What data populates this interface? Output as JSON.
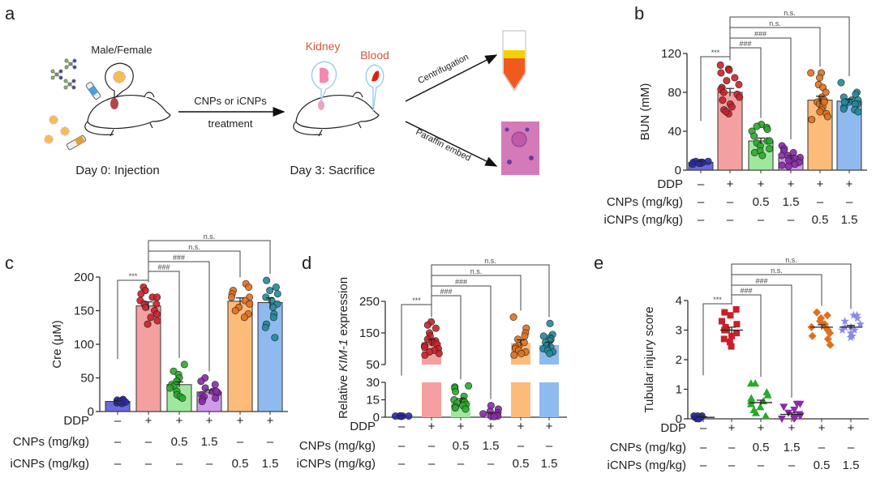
{
  "panel_labels": [
    "a",
    "b",
    "c",
    "d",
    "e"
  ],
  "schematic": {
    "sex_label": "Male/Female",
    "treatment_label_1": "CNPs or iCNPs",
    "treatment_label_2": "treatment",
    "organ_label_kidney": "Kidney",
    "organ_label_blood": "Blood",
    "step_label_1": "Centrifugation",
    "step_label_2": "Paraffin embed",
    "day0_label": "Day 0: Injection",
    "day3_label": "Day 3: Sacrifice",
    "colors": {
      "kidney": "#d9553a",
      "blood": "#e03a10",
      "arrow": "#111111"
    }
  },
  "group_rows": [
    {
      "label": "DDP",
      "values": [
        "–",
        "+",
        "+",
        "+",
        "+",
        "+"
      ]
    },
    {
      "label": "CNPs (mg/kg)",
      "values": [
        "–",
        "–",
        "0.5",
        "1.5",
        "–",
        "–"
      ]
    },
    {
      "label": "iCNPs (mg/kg)",
      "values": [
        "–",
        "–",
        "–",
        "–",
        "0.5",
        "1.5"
      ]
    }
  ],
  "group_colors": {
    "fill": [
      "#6a6ad8",
      "#f4a0a0",
      "#9ee89e",
      "#cf9ae8",
      "#fdbb7a",
      "#8fbaf0"
    ],
    "point": [
      "#2a2aa8",
      "#c8202a",
      "#2aa82a",
      "#8a2aa8",
      "#e0701e",
      "#1f8a9a"
    ]
  },
  "comparisons": [
    {
      "from": 1,
      "to": 0,
      "label": "***"
    },
    {
      "from": 1,
      "to": 2,
      "label": "###"
    },
    {
      "from": 1,
      "to": 3,
      "label": "###"
    },
    {
      "from": 1,
      "to": 4,
      "label": "n.s."
    },
    {
      "from": 1,
      "to": 5,
      "label": "n.s."
    }
  ],
  "chart_data": [
    {
      "panel": "b",
      "type": "bar",
      "ylabel": "BUN (mM)",
      "ylim": [
        0,
        120
      ],
      "yticks": [
        0,
        40,
        80,
        120
      ],
      "means": [
        8,
        80,
        30,
        13,
        72,
        71
      ],
      "sem": [
        1,
        4,
        3,
        2,
        4,
        2
      ],
      "points": [
        [
          7,
          8,
          8,
          9,
          7,
          8,
          6,
          9,
          8,
          7
        ],
        [
          108,
          104,
          103,
          100,
          95,
          92,
          88,
          85,
          83,
          80,
          78,
          75,
          72,
          68,
          65,
          62,
          58,
          60
        ],
        [
          47,
          45,
          44,
          42,
          40,
          35,
          30,
          28,
          25,
          22,
          20,
          18,
          15,
          30
        ],
        [
          25,
          22,
          20,
          18,
          15,
          13,
          12,
          10,
          8,
          6,
          5,
          4,
          15,
          10
        ],
        [
          100,
          100,
          95,
          88,
          85,
          80,
          75,
          72,
          70,
          68,
          65,
          62,
          60,
          58,
          55,
          52,
          70
        ],
        [
          90,
          80,
          78,
          75,
          72,
          72,
          70,
          68,
          68,
          65,
          63,
          62,
          60,
          70
        ]
      ]
    },
    {
      "panel": "c",
      "type": "bar",
      "ylabel": "Cre (μM)",
      "ylim": [
        0,
        200
      ],
      "yticks": [
        0,
        50,
        100,
        150,
        200
      ],
      "means": [
        15,
        157,
        40,
        29,
        164,
        162
      ],
      "sem": [
        1,
        6,
        4,
        3,
        5,
        7
      ],
      "points": [
        [
          12,
          15,
          18,
          14,
          16,
          13,
          17,
          15
        ],
        [
          185,
          180,
          175,
          170,
          165,
          160,
          155,
          150,
          145,
          140,
          135,
          130,
          160,
          170
        ],
        [
          70,
          60,
          55,
          50,
          45,
          40,
          38,
          35,
          30,
          25,
          22,
          20,
          45
        ],
        [
          50,
          45,
          40,
          35,
          30,
          28,
          25,
          22,
          20,
          18,
          15,
          30
        ],
        [
          190,
          185,
          180,
          175,
          170,
          165,
          160,
          155,
          150,
          145,
          140,
          170
        ],
        [
          195,
          185,
          180,
          175,
          170,
          165,
          160,
          155,
          145,
          140,
          130,
          125,
          110
        ]
      ]
    },
    {
      "panel": "d",
      "type": "bar",
      "ylabel_prefix": "Relative ",
      "ylabel_gene": "KIM-1",
      "ylabel_suffix": " expression",
      "ylim": [
        0,
        250
      ],
      "axis_break": [
        30,
        50
      ],
      "yticks": [
        0,
        15,
        30,
        50,
        150,
        250
      ],
      "means": [
        1,
        120,
        14,
        3,
        118,
        112
      ],
      "sem": [
        0.3,
        10,
        2,
        1,
        10,
        9
      ],
      "points": [
        [
          1,
          1,
          1,
          1,
          1,
          1
        ],
        [
          185,
          175,
          165,
          150,
          140,
          130,
          125,
          120,
          115,
          110,
          105,
          100,
          95,
          90,
          85,
          80
        ],
        [
          27,
          26,
          25,
          22,
          18,
          15,
          14,
          13,
          12,
          11,
          10,
          9,
          8,
          7
        ],
        [
          10,
          7,
          5,
          4,
          3,
          2,
          1,
          1,
          0.5
        ],
        [
          200,
          165,
          150,
          140,
          130,
          120,
          110,
          105,
          100,
          95,
          90,
          85,
          80
        ],
        [
          180,
          145,
          140,
          135,
          130,
          125,
          120,
          110,
          105,
          100,
          95,
          90,
          85
        ]
      ]
    },
    {
      "panel": "e",
      "type": "scatter",
      "ylabel": "Tubular injury score",
      "ylim": [
        0,
        4
      ],
      "yticks": [
        0,
        1,
        2,
        3,
        4
      ],
      "markers": [
        "circle",
        "square",
        "triangle",
        "triangle-down",
        "diamond",
        "star"
      ],
      "means": [
        0.05,
        3.0,
        0.55,
        0.15,
        3.1,
        3.1
      ],
      "sem": [
        0.02,
        0.1,
        0.08,
        0.05,
        0.08,
        0.06
      ],
      "points": [
        [
          0,
          0,
          0.05,
          0.1,
          0.1,
          0.05,
          0,
          0.1
        ],
        [
          3.7,
          3.6,
          3.5,
          3.3,
          3.2,
          3.1,
          3.0,
          3.0,
          2.9,
          2.8,
          2.7,
          2.6,
          2.45
        ],
        [
          1.2,
          1.2,
          0.9,
          0.8,
          0.7,
          0.6,
          0.5,
          0.4,
          0.3,
          0.2,
          0.1,
          0.6
        ],
        [
          0.5,
          0.5,
          0.4,
          0.3,
          0.2,
          0.15,
          0.1,
          0.05,
          0,
          0
        ],
        [
          3.6,
          3.5,
          3.4,
          3.3,
          3.2,
          3.1,
          3.0,
          2.9,
          2.8,
          2.7,
          2.5,
          3.1
        ],
        [
          3.5,
          3.5,
          3.4,
          3.3,
          3.2,
          3.1,
          3.0,
          3.0,
          2.9,
          2.8,
          2.75,
          3.1
        ]
      ]
    }
  ]
}
